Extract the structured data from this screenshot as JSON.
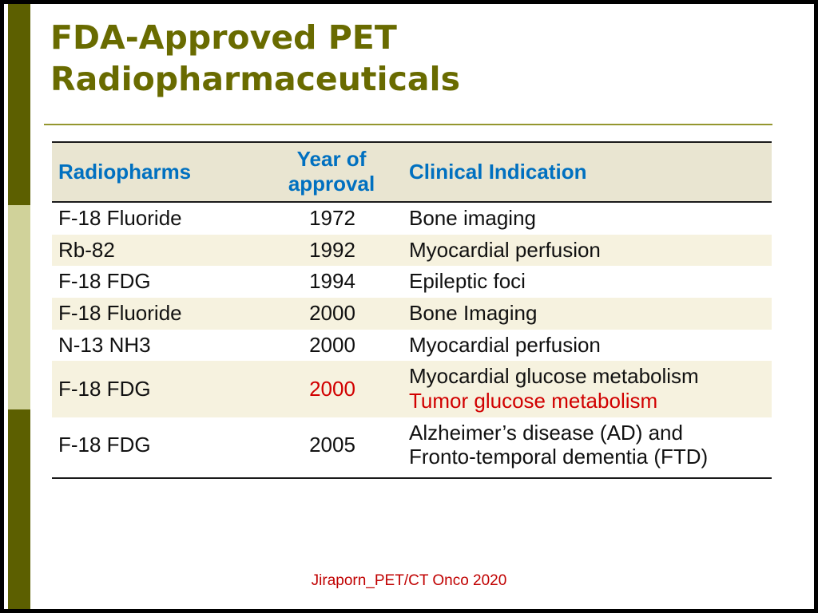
{
  "slide": {
    "title_lines": [
      "FDA-Approved PET",
      "Radiopharmaceuticals"
    ],
    "footer": "Jiraporn_PET/CT Onco 2020"
  },
  "table": {
    "headers": [
      "Radiopharms",
      "Year of approval",
      "Clinical Indication"
    ],
    "rows": [
      {
        "radiopharm": "F-18 Fluoride",
        "year": "1972",
        "year_red": false,
        "shaded": false,
        "indication": [
          {
            "text": "Bone imaging",
            "red": false
          }
        ]
      },
      {
        "radiopharm": "Rb-82",
        "year": "1992",
        "year_red": false,
        "shaded": true,
        "indication": [
          {
            "text": "Myocardial perfusion",
            "red": false
          }
        ]
      },
      {
        "radiopharm": "F-18 FDG",
        "year": "1994",
        "year_red": false,
        "shaded": false,
        "indication": [
          {
            "text": "Epileptic foci",
            "red": false
          }
        ]
      },
      {
        "radiopharm": "F-18 Fluoride",
        "year": "2000",
        "year_red": false,
        "shaded": true,
        "indication": [
          {
            "text": "Bone Imaging",
            "red": false
          }
        ]
      },
      {
        "radiopharm": "N-13 NH3",
        "year": "2000",
        "year_red": false,
        "shaded": false,
        "indication": [
          {
            "text": "Myocardial perfusion",
            "red": false
          }
        ]
      },
      {
        "radiopharm": "F-18 FDG",
        "year": "2000",
        "year_red": true,
        "shaded": true,
        "indication": [
          {
            "text": "Myocardial glucose metabolism",
            "red": false
          },
          {
            "text": "Tumor glucose metabolism",
            "red": true
          }
        ]
      },
      {
        "radiopharm": "F-18 FDG",
        "year": "2005",
        "year_red": false,
        "shaded": false,
        "indication": [
          {
            "text": "Alzheimer’s disease (AD) and",
            "red": false
          },
          {
            "text": "Fronto-temporal dementia (FTD)",
            "red": false
          }
        ]
      }
    ]
  },
  "colors": {
    "title_olive": "#696b00",
    "rule_olive": "#94962e",
    "header_blue": "#0070c0",
    "header_bg": "#e9e5d1",
    "row_shade": "#f6f2df",
    "highlight_red": "#d10000",
    "footer_red": "#c00000",
    "accent_dark": "#5c5f00",
    "accent_light": "#d0d29a"
  }
}
